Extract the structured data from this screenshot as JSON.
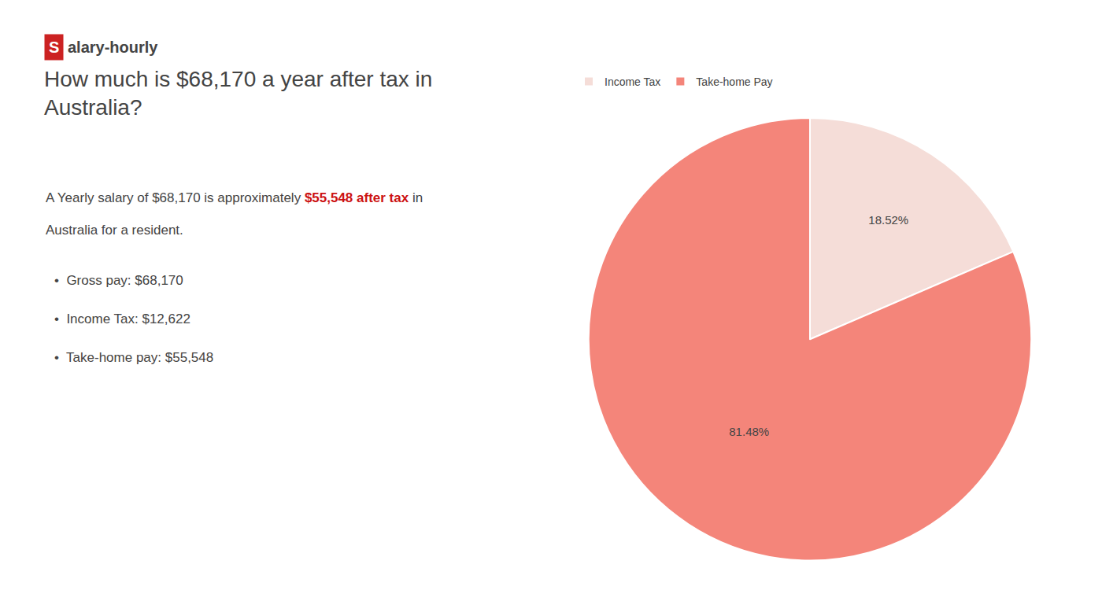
{
  "chart_data": {
    "type": "pie",
    "title": "How much is $68,170 a year after tax in\nAustralia?",
    "categories": [
      "Income Tax",
      "Take-home Pay"
    ],
    "values": [
      18.52,
      81.48
    ],
    "value_labels": [
      "18.52%",
      "81.48%"
    ],
    "colors": [
      "#f5ddd8",
      "#f4857a"
    ],
    "data_labels": true,
    "legend": "upper left",
    "annotations": [
      [
        {
          "text": "S",
          "color": "#cc2222"
        },
        {
          "text": "alary-hourly"
        }
      ],
      [
        {
          "text": "A Yearly salary of $68,170 is approximately "
        },
        {
          "text": "$55,548 after tax",
          "color": "#cc1111"
        },
        {
          "text": " in"
        }
      ],
      [
        {
          "text": "Australia for a resident."
        }
      ],
      [
        {
          "text": "•  Gross pay: $68,170"
        }
      ],
      [
        {
          "text": "•  Income Tax: $12,622"
        }
      ],
      [
        {
          "text": "•  Take-home pay: $55,548"
        }
      ]
    ]
  }
}
